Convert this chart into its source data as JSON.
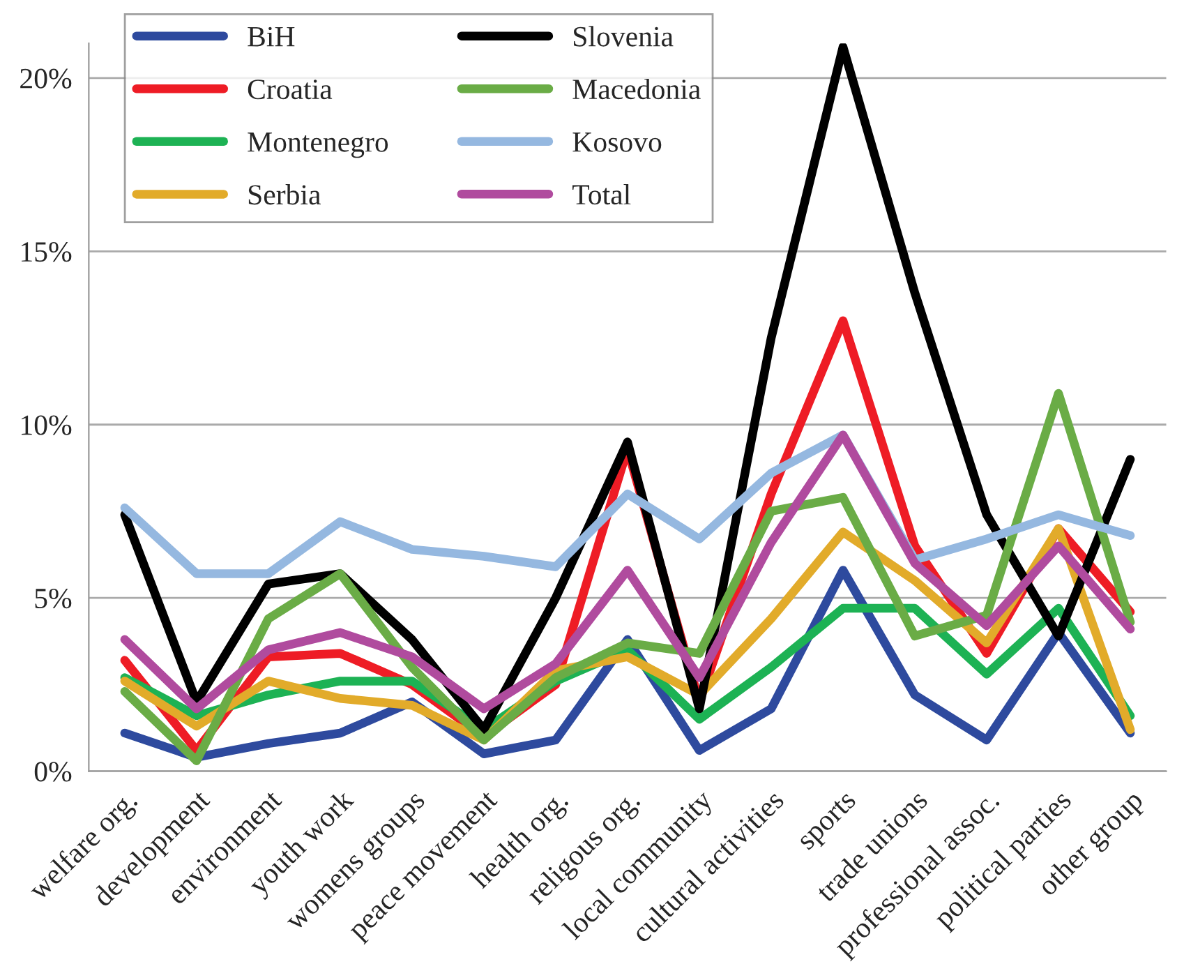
{
  "chart_data": {
    "type": "line",
    "categories": [
      "welfare org.",
      "development",
      "environment",
      "youth work",
      "womens groups",
      "peace movement",
      "health org.",
      "religous org.",
      "local community",
      "cultural activities",
      "sports",
      "trade unions",
      "professional assoc.",
      "political parties",
      "other group"
    ],
    "series": [
      {
        "name": "BiH",
        "color": "#2e4a9e",
        "values": [
          1.1,
          0.4,
          0.8,
          1.1,
          2.0,
          0.5,
          0.9,
          3.8,
          0.6,
          1.8,
          5.8,
          2.2,
          0.9,
          4.0,
          1.1
        ]
      },
      {
        "name": "Croatia",
        "color": "#ee1c25",
        "values": [
          3.2,
          0.6,
          3.3,
          3.4,
          2.5,
          1.0,
          2.5,
          9.3,
          2.0,
          8.0,
          13.0,
          6.5,
          3.4,
          7.0,
          4.6
        ]
      },
      {
        "name": "Montenegro",
        "color": "#1db254",
        "values": [
          2.7,
          1.6,
          2.2,
          2.6,
          2.6,
          1.2,
          2.6,
          3.5,
          1.5,
          3.0,
          4.7,
          4.7,
          2.8,
          4.7,
          1.6
        ]
      },
      {
        "name": "Serbia",
        "color": "#e2ab2a",
        "values": [
          2.6,
          1.3,
          2.6,
          2.1,
          1.9,
          0.9,
          2.9,
          3.3,
          2.2,
          4.4,
          6.9,
          5.5,
          3.7,
          7.0,
          1.2
        ]
      },
      {
        "name": "Slovenia",
        "color": "#000000",
        "values": [
          7.4,
          2.0,
          5.4,
          5.7,
          3.8,
          1.2,
          5.0,
          9.5,
          1.8,
          12.5,
          20.9,
          13.8,
          7.4,
          3.9,
          9.0
        ]
      },
      {
        "name": "Macedonia",
        "color": "#6aac46",
        "values": [
          2.3,
          0.3,
          4.4,
          5.7,
          3.0,
          0.9,
          2.7,
          3.7,
          3.4,
          7.5,
          7.9,
          3.9,
          4.5,
          10.9,
          4.3
        ]
      },
      {
        "name": "Kosovo",
        "color": "#95b8e0",
        "values": [
          7.6,
          5.7,
          5.7,
          7.2,
          6.4,
          6.2,
          5.9,
          8.0,
          6.7,
          8.6,
          9.7,
          6.1,
          6.7,
          7.4,
          6.8
        ]
      },
      {
        "name": "Total",
        "color": "#b04b9e",
        "values": [
          3.8,
          1.8,
          3.5,
          4.0,
          3.3,
          1.8,
          3.1,
          5.8,
          2.7,
          6.6,
          9.7,
          6.0,
          4.2,
          6.5,
          4.1
        ]
      }
    ],
    "ylim": [
      0,
      21
    ],
    "yticks": [
      {
        "value": 0,
        "label": "0%"
      },
      {
        "value": 5,
        "label": "5%"
      },
      {
        "value": 10,
        "label": "10%"
      },
      {
        "value": 15,
        "label": "15%"
      },
      {
        "value": 20,
        "label": "20%"
      }
    ],
    "grid": "y",
    "legend": "top left",
    "marker": "none",
    "line_style": "solid"
  }
}
